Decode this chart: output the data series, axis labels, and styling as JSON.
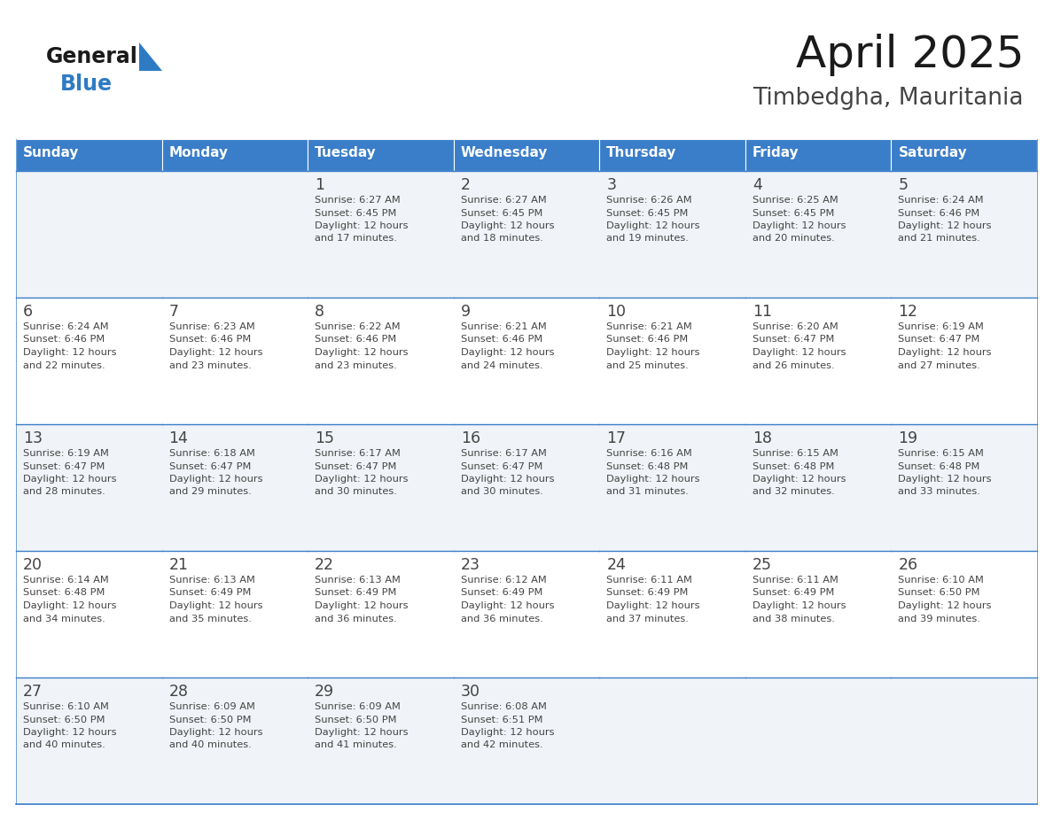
{
  "title": "April 2025",
  "subtitle": "Timbedgha, Mauritania",
  "header_bg_color": "#3A7DC9",
  "header_text_color": "#FFFFFF",
  "days_of_week": [
    "Sunday",
    "Monday",
    "Tuesday",
    "Wednesday",
    "Thursday",
    "Friday",
    "Saturday"
  ],
  "row_colors": [
    "#F0F4F8",
    "#FFFFFF"
  ],
  "border_color": "#3A7DC9",
  "text_color": "#444444",
  "title_color": "#1a1a1a",
  "subtitle_color": "#444444",
  "calendar": [
    [
      {
        "day": "",
        "sunrise": "",
        "sunset": "",
        "daylight_hours": 0,
        "daylight_minutes": 0
      },
      {
        "day": "",
        "sunrise": "",
        "sunset": "",
        "daylight_hours": 0,
        "daylight_minutes": 0
      },
      {
        "day": "1",
        "sunrise": "6:27 AM",
        "sunset": "6:45 PM",
        "daylight_hours": 12,
        "daylight_minutes": 17
      },
      {
        "day": "2",
        "sunrise": "6:27 AM",
        "sunset": "6:45 PM",
        "daylight_hours": 12,
        "daylight_minutes": 18
      },
      {
        "day": "3",
        "sunrise": "6:26 AM",
        "sunset": "6:45 PM",
        "daylight_hours": 12,
        "daylight_minutes": 19
      },
      {
        "day": "4",
        "sunrise": "6:25 AM",
        "sunset": "6:45 PM",
        "daylight_hours": 12,
        "daylight_minutes": 20
      },
      {
        "day": "5",
        "sunrise": "6:24 AM",
        "sunset": "6:46 PM",
        "daylight_hours": 12,
        "daylight_minutes": 21
      }
    ],
    [
      {
        "day": "6",
        "sunrise": "6:24 AM",
        "sunset": "6:46 PM",
        "daylight_hours": 12,
        "daylight_minutes": 22
      },
      {
        "day": "7",
        "sunrise": "6:23 AM",
        "sunset": "6:46 PM",
        "daylight_hours": 12,
        "daylight_minutes": 23
      },
      {
        "day": "8",
        "sunrise": "6:22 AM",
        "sunset": "6:46 PM",
        "daylight_hours": 12,
        "daylight_minutes": 23
      },
      {
        "day": "9",
        "sunrise": "6:21 AM",
        "sunset": "6:46 PM",
        "daylight_hours": 12,
        "daylight_minutes": 24
      },
      {
        "day": "10",
        "sunrise": "6:21 AM",
        "sunset": "6:46 PM",
        "daylight_hours": 12,
        "daylight_minutes": 25
      },
      {
        "day": "11",
        "sunrise": "6:20 AM",
        "sunset": "6:47 PM",
        "daylight_hours": 12,
        "daylight_minutes": 26
      },
      {
        "day": "12",
        "sunrise": "6:19 AM",
        "sunset": "6:47 PM",
        "daylight_hours": 12,
        "daylight_minutes": 27
      }
    ],
    [
      {
        "day": "13",
        "sunrise": "6:19 AM",
        "sunset": "6:47 PM",
        "daylight_hours": 12,
        "daylight_minutes": 28
      },
      {
        "day": "14",
        "sunrise": "6:18 AM",
        "sunset": "6:47 PM",
        "daylight_hours": 12,
        "daylight_minutes": 29
      },
      {
        "day": "15",
        "sunrise": "6:17 AM",
        "sunset": "6:47 PM",
        "daylight_hours": 12,
        "daylight_minutes": 30
      },
      {
        "day": "16",
        "sunrise": "6:17 AM",
        "sunset": "6:47 PM",
        "daylight_hours": 12,
        "daylight_minutes": 30
      },
      {
        "day": "17",
        "sunrise": "6:16 AM",
        "sunset": "6:48 PM",
        "daylight_hours": 12,
        "daylight_minutes": 31
      },
      {
        "day": "18",
        "sunrise": "6:15 AM",
        "sunset": "6:48 PM",
        "daylight_hours": 12,
        "daylight_minutes": 32
      },
      {
        "day": "19",
        "sunrise": "6:15 AM",
        "sunset": "6:48 PM",
        "daylight_hours": 12,
        "daylight_minutes": 33
      }
    ],
    [
      {
        "day": "20",
        "sunrise": "6:14 AM",
        "sunset": "6:48 PM",
        "daylight_hours": 12,
        "daylight_minutes": 34
      },
      {
        "day": "21",
        "sunrise": "6:13 AM",
        "sunset": "6:49 PM",
        "daylight_hours": 12,
        "daylight_minutes": 35
      },
      {
        "day": "22",
        "sunrise": "6:13 AM",
        "sunset": "6:49 PM",
        "daylight_hours": 12,
        "daylight_minutes": 36
      },
      {
        "day": "23",
        "sunrise": "6:12 AM",
        "sunset": "6:49 PM",
        "daylight_hours": 12,
        "daylight_minutes": 36
      },
      {
        "day": "24",
        "sunrise": "6:11 AM",
        "sunset": "6:49 PM",
        "daylight_hours": 12,
        "daylight_minutes": 37
      },
      {
        "day": "25",
        "sunrise": "6:11 AM",
        "sunset": "6:49 PM",
        "daylight_hours": 12,
        "daylight_minutes": 38
      },
      {
        "day": "26",
        "sunrise": "6:10 AM",
        "sunset": "6:50 PM",
        "daylight_hours": 12,
        "daylight_minutes": 39
      }
    ],
    [
      {
        "day": "27",
        "sunrise": "6:10 AM",
        "sunset": "6:50 PM",
        "daylight_hours": 12,
        "daylight_minutes": 40
      },
      {
        "day": "28",
        "sunrise": "6:09 AM",
        "sunset": "6:50 PM",
        "daylight_hours": 12,
        "daylight_minutes": 40
      },
      {
        "day": "29",
        "sunrise": "6:09 AM",
        "sunset": "6:50 PM",
        "daylight_hours": 12,
        "daylight_minutes": 41
      },
      {
        "day": "30",
        "sunrise": "6:08 AM",
        "sunset": "6:51 PM",
        "daylight_hours": 12,
        "daylight_minutes": 42
      },
      {
        "day": "",
        "sunrise": "",
        "sunset": "",
        "daylight_hours": 0,
        "daylight_minutes": 0
      },
      {
        "day": "",
        "sunrise": "",
        "sunset": "",
        "daylight_hours": 0,
        "daylight_minutes": 0
      },
      {
        "day": "",
        "sunrise": "",
        "sunset": "",
        "daylight_hours": 0,
        "daylight_minutes": 0
      }
    ]
  ],
  "logo_general_color": "#1a1a1a",
  "logo_blue_color": "#2E7BC4",
  "fig_width": 11.88,
  "fig_height": 9.18,
  "dpi": 100
}
